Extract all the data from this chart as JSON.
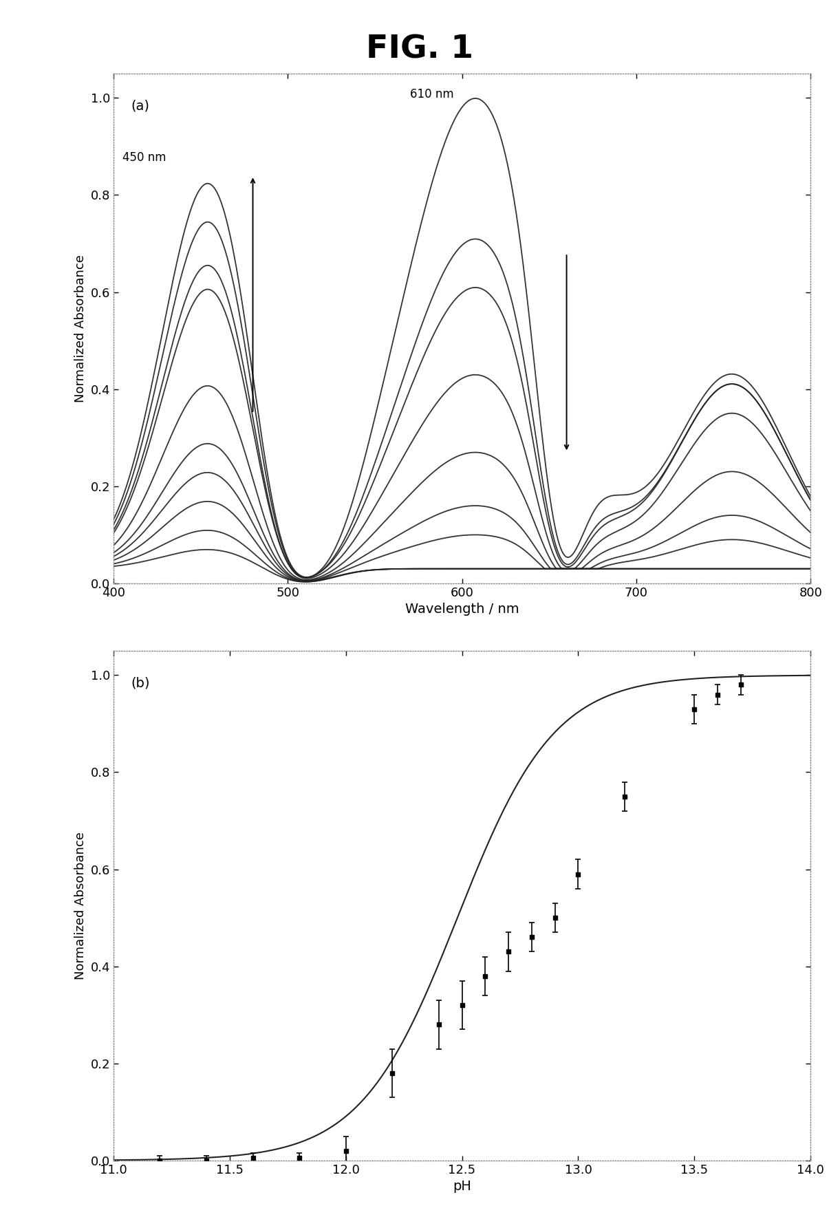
{
  "fig_title": "FIG. 1",
  "panel_a_label": "(a)",
  "panel_b_label": "(b)",
  "xlabel_a": "Wavelength / nm",
  "ylabel_a": "Normalized Absorbance",
  "xlabel_b": "pH",
  "ylabel_b": "Normalized Absorbance",
  "xlim_a": [
    400,
    800
  ],
  "ylim_a": [
    0.0,
    1.05
  ],
  "xlim_b": [
    11.0,
    14.0
  ],
  "ylim_b": [
    0.0,
    1.05
  ],
  "xticks_a": [
    400,
    500,
    600,
    700,
    800
  ],
  "yticks_a": [
    0.0,
    0.2,
    0.4,
    0.6,
    0.8,
    1.0
  ],
  "xticks_b": [
    11.0,
    11.5,
    12.0,
    12.5,
    13.0,
    13.5,
    14.0
  ],
  "yticks_b": [
    0.0,
    0.2,
    0.4,
    0.6,
    0.8,
    1.0
  ],
  "annotation_450": "450 nm",
  "annotation_610": "610 nm",
  "curve_color": "#222222",
  "background_color": "#ffffff",
  "panel_bg": "#ffffff",
  "curves_a": [
    [
      0.04,
      0.0,
      0.0
    ],
    [
      0.08,
      0.0,
      0.0
    ],
    [
      0.14,
      0.0,
      0.0
    ],
    [
      0.2,
      0.07,
      0.06
    ],
    [
      0.26,
      0.13,
      0.11
    ],
    [
      0.38,
      0.24,
      0.2
    ],
    [
      0.63,
      0.4,
      0.32
    ],
    [
      0.8,
      0.58,
      0.38
    ],
    [
      0.72,
      0.68,
      0.38
    ],
    [
      0.58,
      0.97,
      0.4
    ]
  ],
  "ph_data": [
    11.2,
    11.4,
    11.6,
    11.8,
    12.0,
    12.2,
    12.4,
    12.5,
    12.6,
    12.7,
    12.8,
    12.9,
    13.0,
    13.2,
    13.5,
    13.6,
    13.7
  ],
  "abs_data": [
    0.0,
    0.0,
    0.005,
    0.005,
    0.02,
    0.18,
    0.28,
    0.32,
    0.38,
    0.43,
    0.46,
    0.5,
    0.59,
    0.75,
    0.93,
    0.96,
    0.98
  ],
  "ph_err": [
    0.01,
    0.01,
    0.01,
    0.01,
    0.03,
    0.05,
    0.05,
    0.05,
    0.04,
    0.04,
    0.03,
    0.03,
    0.03,
    0.03,
    0.03,
    0.02,
    0.02
  ],
  "sigmoid_pka": 12.48,
  "sigmoid_slope": 4.8
}
